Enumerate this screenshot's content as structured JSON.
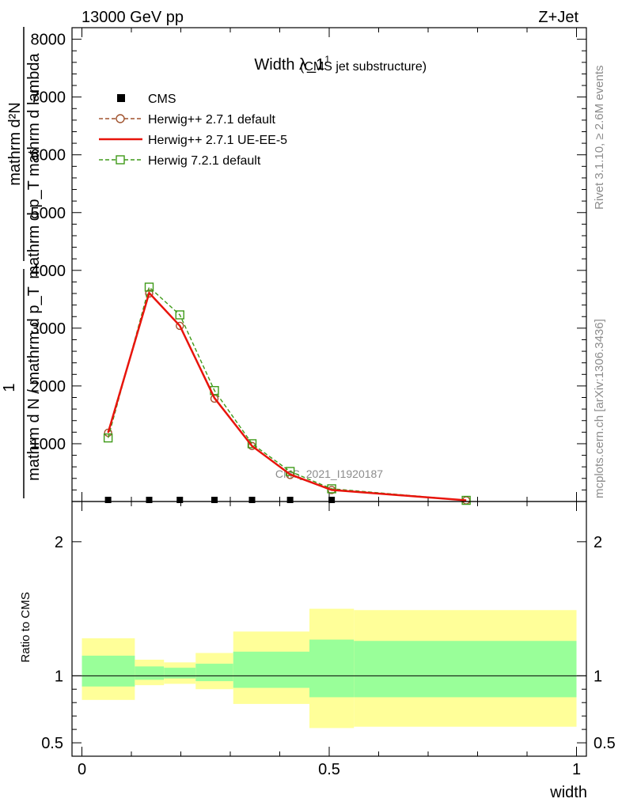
{
  "header": {
    "left": "13000 GeV pp",
    "right": "Z+Jet"
  },
  "side_labels": {
    "rivet": "Rivet 3.1.10, ≥ 2.6M events",
    "mcplots": "mcplots.cern.ch [arXiv:1306.3436]"
  },
  "chart_data": [
    {
      "type": "line",
      "title": "Width λ_1",
      "title_sup": "1",
      "subtitle": "(CMS jet substructure)",
      "ylabel_top": "mathrm d²N",
      "ylabel_top_sub": "mathrm d p_T mathrm d lambda",
      "ylabel_bottom": "mathrm d N / mathrm d p_T",
      "ylabel_one": "1",
      "watermark": "CMS_2021_I1920187",
      "xlim": [
        -0.02,
        1.02
      ],
      "ylim": [
        0,
        8200
      ],
      "yticks": [
        {
          "v": 1000,
          "label": "1000"
        },
        {
          "v": 2000,
          "label": "2000"
        },
        {
          "v": 3000,
          "label": "3000"
        },
        {
          "v": 4000,
          "label": "4000"
        },
        {
          "v": 5000,
          "label": "5000"
        },
        {
          "v": 6000,
          "label": "6000"
        },
        {
          "v": 7000,
          "label": "7000"
        },
        {
          "v": 8000,
          "label": "8000"
        }
      ],
      "legend_position": "top-left",
      "series": [
        {
          "name": "CMS",
          "style": "square-filled",
          "color": "#000000",
          "x": [
            0.053,
            0.136,
            0.198,
            0.268,
            0.344,
            0.421,
            0.505
          ],
          "y": [
            0,
            0,
            0,
            0,
            0,
            0,
            0
          ]
        },
        {
          "name": "Herwig++ 2.7.1 default",
          "style": "dashed-circle",
          "color": "#a0522d",
          "x": [
            0.053,
            0.136,
            0.198,
            0.268,
            0.344,
            0.421,
            0.505,
            0.777
          ],
          "y": [
            1190,
            3600,
            3040,
            1780,
            960,
            460,
            200,
            20
          ]
        },
        {
          "name": "Herwig++ 2.7.1 UE-EE-5",
          "style": "solid",
          "color": "#e8140c",
          "x": [
            0.053,
            0.136,
            0.198,
            0.268,
            0.344,
            0.421,
            0.505,
            0.777
          ],
          "y": [
            1190,
            3610,
            3040,
            1790,
            960,
            470,
            200,
            20
          ]
        },
        {
          "name": "Herwig 7.2.1 default",
          "style": "dashed-square",
          "color": "#3e9a18",
          "x": [
            0.053,
            0.136,
            0.198,
            0.268,
            0.344,
            0.421,
            0.505,
            0.777
          ],
          "y": [
            1100,
            3710,
            3230,
            1920,
            1000,
            520,
            220,
            20
          ]
        }
      ]
    },
    {
      "type": "area",
      "ylabel": "Ratio to CMS",
      "xlabel": "width",
      "xlim": [
        -0.02,
        1.02
      ],
      "ylim": [
        0.4,
        2.3
      ],
      "yticks": [
        {
          "v": 0.5,
          "label": "0.5"
        },
        {
          "v": 1,
          "label": "1"
        },
        {
          "v": 2,
          "label": "2"
        }
      ],
      "xticks": [
        {
          "v": 0,
          "label": "0"
        },
        {
          "v": 0.5,
          "label": "0.5"
        },
        {
          "v": 1,
          "label": "1"
        }
      ],
      "reference": 1,
      "bands": [
        {
          "x0": 0.0,
          "x1": 0.107,
          "inner": [
            0.92,
            1.15
          ],
          "outer": [
            0.82,
            1.28
          ]
        },
        {
          "x0": 0.107,
          "x1": 0.166,
          "inner": [
            0.97,
            1.07
          ],
          "outer": [
            0.93,
            1.12
          ]
        },
        {
          "x0": 0.166,
          "x1": 0.23,
          "inner": [
            0.98,
            1.06
          ],
          "outer": [
            0.94,
            1.1
          ]
        },
        {
          "x0": 0.23,
          "x1": 0.306,
          "inner": [
            0.96,
            1.09
          ],
          "outer": [
            0.9,
            1.17
          ]
        },
        {
          "x0": 0.306,
          "x1": 0.46,
          "inner": [
            0.91,
            1.18
          ],
          "outer": [
            0.79,
            1.33
          ]
        },
        {
          "x0": 0.46,
          "x1": 0.55,
          "inner": [
            0.84,
            1.27
          ],
          "outer": [
            0.61,
            1.5
          ]
        },
        {
          "x0": 0.55,
          "x1": 1.0,
          "inner": [
            0.84,
            1.26
          ],
          "outer": [
            0.62,
            1.49
          ]
        }
      ]
    }
  ],
  "colors": {
    "band_inner": "#99ff99",
    "band_outer": "#ffff99"
  }
}
